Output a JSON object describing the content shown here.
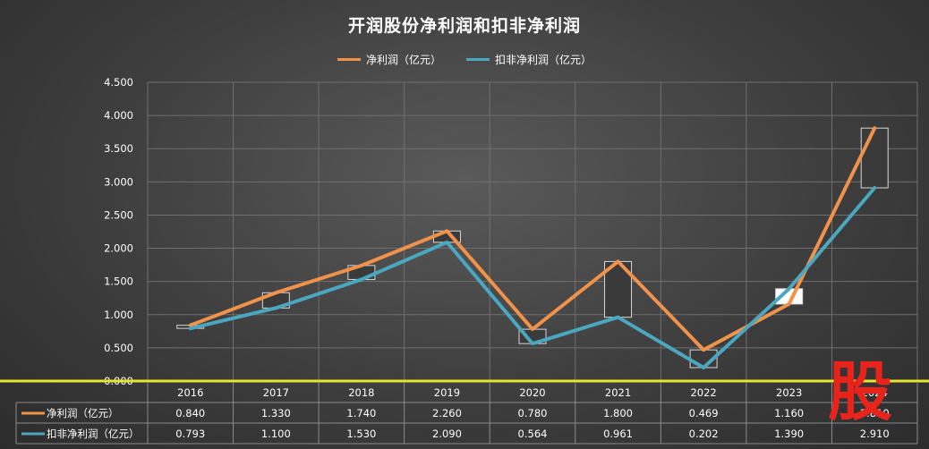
{
  "chart_data": {
    "type": "line",
    "title": "开润股份净利润和扣非净利润",
    "categories": [
      "2016",
      "2017",
      "2018",
      "2019",
      "2020",
      "2021",
      "2022",
      "2023",
      "2024"
    ],
    "series": [
      {
        "name": "净利润（亿元）",
        "color": "#f0924a",
        "values": [
          0.84,
          1.33,
          1.74,
          2.26,
          0.78,
          1.8,
          0.469,
          1.16,
          3.81
        ],
        "labels": [
          "0.840",
          "1.330",
          "1.740",
          "2.260",
          "0.780",
          "1.800",
          "0.469",
          "1.160",
          "3.810"
        ]
      },
      {
        "name": "扣非净利润（亿元）",
        "color": "#4aa7c0",
        "values": [
          0.793,
          1.1,
          1.53,
          2.09,
          0.564,
          0.961,
          0.202,
          1.39,
          2.91
        ],
        "labels": [
          "0.793",
          "1.100",
          "1.530",
          "2.090",
          "0.564",
          "0.961",
          "0.202",
          "1.390",
          "2.910"
        ]
      }
    ],
    "y_ticks": [
      "0.000",
      "0.500",
      "1.000",
      "1.500",
      "2.000",
      "2.500",
      "3.000",
      "3.500",
      "4.000",
      "4.500"
    ],
    "ylim": [
      0,
      4.5
    ],
    "grid": true,
    "legend": "top-center",
    "data_table": true,
    "zero_line_color": "#e6e62a"
  },
  "watermark": "股"
}
